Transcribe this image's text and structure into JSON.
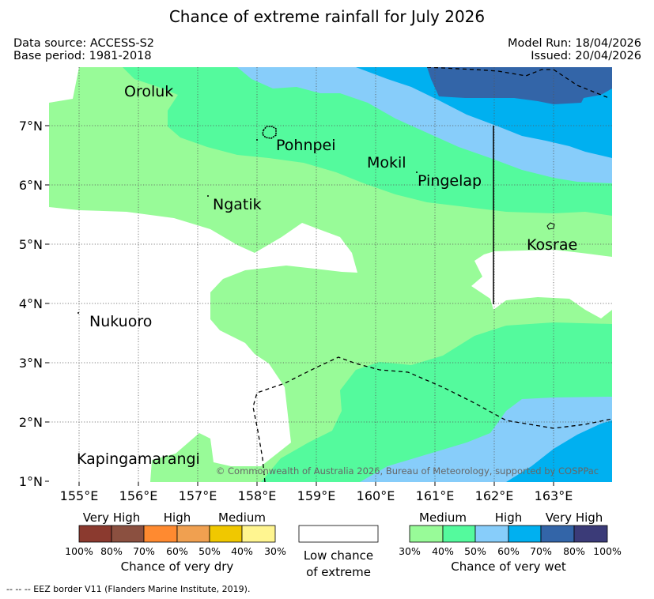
{
  "title": "Chance of extreme rainfall for July 2026",
  "meta": {
    "data_source": "Data source: ACCESS-S2",
    "base_period": "Base period: 1981-2018",
    "model_run": "Model Run: 18/04/2026",
    "issued": "Issued: 20/04/2026"
  },
  "map": {
    "lat_labels": [
      "7°N",
      "6°N",
      "5°N",
      "4°N",
      "3°N",
      "2°N",
      "1°N"
    ],
    "lon_labels": [
      "155°E",
      "156°E",
      "157°E",
      "158°E",
      "159°E",
      "160°E",
      "161°E",
      "162°E",
      "163°E"
    ],
    "places": {
      "oroluk": "Oroluk",
      "pohnpei": "Pohnpei",
      "mokil": "Mokil",
      "pingelap": "Pingelap",
      "ngatik": "Ngatik",
      "kosrae": "Kosrae",
      "nukuoro": "Nukuoro",
      "kapingamarangi": "Kapingamarangi"
    },
    "copyright": "© Commonwealth of Australia 2026, Bureau of Meteorology, supported by COSPPac"
  },
  "legend": {
    "dry": {
      "categories": [
        "Very High",
        "High",
        "Medium"
      ],
      "ticks": [
        "100%",
        "80%",
        "70%",
        "60%",
        "50%",
        "40%",
        "30%"
      ],
      "caption": "Chance of very dry",
      "colors": [
        "#8b3a2f",
        "#8b5040",
        "#ff8a30",
        "#f0a050",
        "#f0c800",
        "#fff590"
      ]
    },
    "low": {
      "caption_line1": "Low chance",
      "caption_line2": "of extreme"
    },
    "wet": {
      "categories": [
        "Medium",
        "High",
        "Very High"
      ],
      "ticks": [
        "30%",
        "40%",
        "50%",
        "60%",
        "70%",
        "80%",
        "100%"
      ],
      "caption": "Chance of very wet",
      "colors": [
        "#98fb98",
        "#54fa9d",
        "#87cdfa",
        "#00b0f0",
        "#3365a8",
        "#3b3b78"
      ]
    }
  },
  "footer": "--  --  -- EEZ border V11 (Flanders Marine Institute, 2019)."
}
